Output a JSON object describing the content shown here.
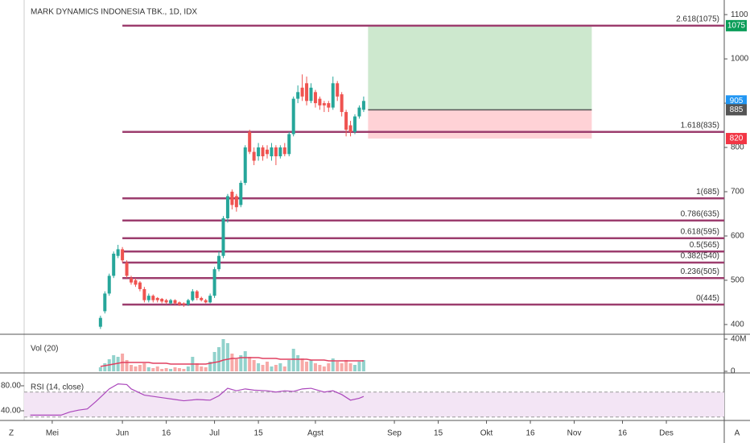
{
  "chart_data": {
    "type": "candlestick",
    "title": "MARK DYNAMICS INDONESIA TBK., 1D, IDX",
    "up_color": "#26a69a",
    "down_color": "#ef5350",
    "candles": [
      [
        395,
        420,
        390,
        415
      ],
      [
        430,
        475,
        425,
        470
      ],
      [
        470,
        515,
        465,
        510
      ],
      [
        510,
        565,
        505,
        560
      ],
      [
        555,
        580,
        550,
        570
      ],
      [
        570,
        575,
        540,
        545
      ],
      [
        540,
        545,
        505,
        510
      ],
      [
        505,
        510,
        490,
        495
      ],
      [
        500,
        505,
        485,
        490
      ],
      [
        495,
        498,
        475,
        480
      ],
      [
        480,
        485,
        450,
        455
      ],
      [
        455,
        470,
        450,
        465
      ],
      [
        465,
        468,
        450,
        455
      ],
      [
        460,
        462,
        450,
        455
      ],
      [
        458,
        460,
        448,
        452
      ],
      [
        455,
        458,
        446,
        450
      ],
      [
        448,
        458,
        445,
        455
      ],
      [
        455,
        457,
        445,
        448
      ],
      [
        450,
        452,
        442,
        445
      ],
      [
        448,
        450,
        440,
        445
      ],
      [
        445,
        458,
        442,
        455
      ],
      [
        455,
        480,
        452,
        475
      ],
      [
        475,
        478,
        455,
        460
      ],
      [
        460,
        463,
        452,
        455
      ],
      [
        455,
        458,
        448,
        450
      ],
      [
        450,
        470,
        448,
        465
      ],
      [
        465,
        530,
        460,
        525
      ],
      [
        525,
        565,
        520,
        555
      ],
      [
        555,
        645,
        550,
        640
      ],
      [
        640,
        695,
        630,
        690
      ],
      [
        700,
        705,
        660,
        670
      ],
      [
        690,
        695,
        655,
        665
      ],
      [
        670,
        725,
        665,
        720
      ],
      [
        720,
        805,
        715,
        800
      ],
      [
        835,
        840,
        785,
        790
      ],
      [
        790,
        800,
        760,
        770
      ],
      [
        780,
        810,
        770,
        800
      ],
      [
        800,
        805,
        770,
        780
      ],
      [
        795,
        805,
        775,
        785
      ],
      [
        780,
        810,
        770,
        800
      ],
      [
        800,
        805,
        760,
        780
      ],
      [
        780,
        805,
        775,
        800
      ],
      [
        800,
        810,
        780,
        785
      ],
      [
        785,
        835,
        780,
        830
      ],
      [
        830,
        915,
        825,
        910
      ],
      [
        910,
        940,
        900,
        925
      ],
      [
        935,
        965,
        905,
        915
      ],
      [
        945,
        960,
        895,
        905
      ],
      [
        905,
        945,
        900,
        935
      ],
      [
        925,
        930,
        890,
        900
      ],
      [
        910,
        915,
        885,
        895
      ],
      [
        900,
        905,
        880,
        895
      ],
      [
        900,
        905,
        880,
        890
      ],
      [
        890,
        960,
        885,
        945
      ],
      [
        945,
        950,
        905,
        915
      ],
      [
        920,
        925,
        870,
        880
      ],
      [
        880,
        885,
        825,
        840
      ],
      [
        850,
        860,
        825,
        835
      ],
      [
        835,
        875,
        830,
        870
      ],
      [
        870,
        895,
        865,
        890
      ],
      [
        885,
        915,
        880,
        905
      ]
    ],
    "ylim": [
      378,
      1133
    ],
    "yticks": [
      1100,
      1000,
      900,
      800,
      700,
      600,
      500,
      400
    ],
    "xlim": [
      -17.4,
      142.2
    ],
    "xticks": [
      {
        "value": -11,
        "label": "Mei"
      },
      {
        "value": 5,
        "label": "Jun"
      },
      {
        "value": 15,
        "label": "16"
      },
      {
        "value": 26,
        "label": "Jul"
      },
      {
        "value": 36,
        "label": "15"
      },
      {
        "value": 49,
        "label": "Agst"
      },
      {
        "value": 67,
        "label": "Sep"
      },
      {
        "value": 77,
        "label": "15"
      },
      {
        "value": 88,
        "label": "Okt"
      },
      {
        "value": 98,
        "label": "16"
      },
      {
        "value": 108,
        "label": "Nov"
      },
      {
        "value": 119,
        "label": "16"
      },
      {
        "value": 129,
        "label": "Des"
      }
    ],
    "fib": {
      "color": "#9c3d6e",
      "start_index": 5,
      "levels": [
        {
          "label": "2.618(1075)",
          "value": 1075
        },
        {
          "label": "1.618(835)",
          "value": 835
        },
        {
          "label": "1(685)",
          "value": 685
        },
        {
          "label": "0.786(635)",
          "value": 635
        },
        {
          "label": "0.618(595)",
          "value": 595
        },
        {
          "label": "0.5(565)",
          "value": 565
        },
        {
          "label": "0.382(540)",
          "value": 540
        },
        {
          "label": "0.236(505)",
          "value": 505
        },
        {
          "label": "0(445)",
          "value": 445
        }
      ]
    },
    "position": {
      "target": 1075,
      "entry": 885,
      "stop": 820,
      "start_index": 61,
      "end_index": 112,
      "target_color": "#0a9d58",
      "entry_color": "#555555",
      "stop_color": "#f23645",
      "last_color": "#2196f3"
    },
    "volume": {
      "label": "Vol (20)",
      "ylim": [
        0,
        46
      ],
      "yticks": [
        {
          "value": 40,
          "label": "40M"
        },
        0
      ],
      "values": [
        5,
        10,
        15,
        20,
        18,
        22,
        14,
        8,
        6,
        8,
        10,
        5,
        4,
        6,
        3,
        4,
        3,
        5,
        4,
        3,
        6,
        18,
        10,
        6,
        5,
        12,
        24,
        30,
        40,
        35,
        22,
        15,
        20,
        25,
        18,
        14,
        10,
        8,
        12,
        6,
        8,
        10,
        6,
        14,
        28,
        20,
        16,
        12,
        14,
        10,
        8,
        6,
        10,
        16,
        12,
        10,
        14,
        10,
        8,
        12,
        14
      ],
      "ma": [
        6,
        7,
        8,
        9,
        10,
        11,
        11,
        11,
        11,
        11,
        11,
        11,
        10,
        10,
        10,
        10,
        9,
        9,
        9,
        9,
        9,
        9,
        9,
        9,
        9,
        10,
        11,
        12,
        14,
        15,
        16,
        16,
        17,
        17,
        17,
        17,
        17,
        16,
        16,
        16,
        16,
        15,
        15,
        15,
        15,
        15,
        15,
        15,
        14,
        14,
        14,
        14,
        13,
        13,
        13,
        13,
        13,
        13,
        13,
        13,
        13
      ],
      "ma_color": "#e04060"
    },
    "rsi": {
      "label": "RSI (14, close)",
      "color": "#ab47bc",
      "ylim": [
        24.5,
        100.6
      ],
      "yticks": [
        {
          "value": 80,
          "label": "80.00"
        },
        {
          "value": 40,
          "label": "40.00"
        }
      ],
      "bands": [
        70,
        30
      ],
      "x": [
        -16,
        -12,
        -9,
        -7,
        -5,
        -3,
        -1,
        2,
        4,
        6,
        7,
        10,
        14,
        17,
        19,
        22,
        25,
        27,
        29,
        31,
        33,
        35,
        38,
        40,
        42,
        44,
        46,
        48,
        50,
        51,
        53,
        55,
        57,
        59,
        60
      ],
      "values": [
        33,
        33,
        33,
        38,
        41,
        43,
        55,
        75,
        83,
        82,
        75,
        65,
        61,
        58,
        56,
        58,
        57,
        64,
        76,
        72,
        75,
        73,
        72,
        70,
        72,
        71,
        75,
        76,
        72,
        70,
        72,
        66,
        57,
        60,
        63
      ]
    },
    "ui": {
      "left_button": "Z",
      "right_button": "A"
    }
  }
}
